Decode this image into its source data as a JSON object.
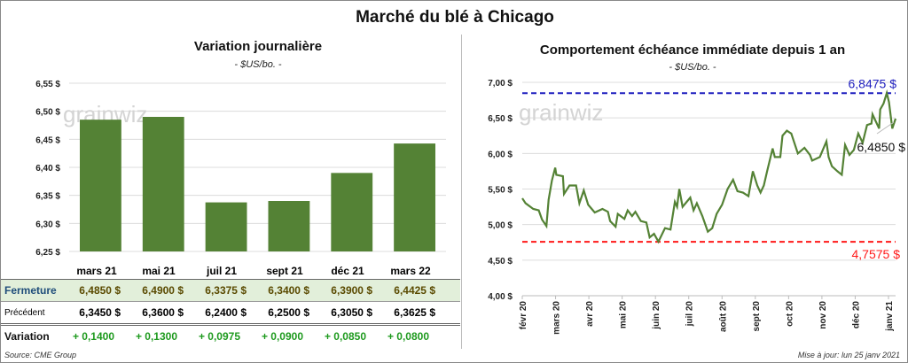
{
  "title": "Marché du blé à Chicago",
  "left": {
    "title": "Variation journalière",
    "subtitle": "- $US/bo. -",
    "table": {
      "columns": [
        "mars 21",
        "mai 21",
        "juil 21",
        "sept 21",
        "déc 21",
        "mars 22"
      ],
      "rows": [
        {
          "label": "Fermeture",
          "values": [
            "6,4850  $",
            "6,4900  $",
            "6,3375  $",
            "6,3400  $",
            "6,3900  $",
            "6,4425  $"
          ]
        },
        {
          "label": "Précédent",
          "values": [
            "6,3450  $",
            "6,3600  $",
            "6,2400  $",
            "6,2500  $",
            "6,3050  $",
            "6,3625  $"
          ]
        },
        {
          "label": "Variation",
          "values": [
            "+ 0,1400",
            "+ 0,1300",
            "+ 0,0975",
            "+ 0,0900",
            "+ 0,0850",
            "+ 0,0800"
          ]
        }
      ]
    },
    "source": "Source: CME Group"
  },
  "right": {
    "title": "Comportement  échéance immédiate depuis 1 an",
    "subtitle": "- $US/bo. -",
    "update": "Mise à jour: lun 25 janv 2021"
  },
  "watermark": "grainwiz",
  "colors": {
    "bar": "#548235",
    "line": "#548235",
    "max": "#1f1fbf",
    "min": "#ff1a1a",
    "fermeture_bg": "#e2efda",
    "variation": "#1e9a1e"
  },
  "chart_data": [
    {
      "type": "bar",
      "categories": [
        "mars 21",
        "mai 21",
        "juil 21",
        "sept 21",
        "déc 21",
        "mars 22"
      ],
      "values": [
        6.485,
        6.49,
        6.3375,
        6.34,
        6.39,
        6.4425
      ],
      "ylim": [
        6.25,
        6.55
      ],
      "yticks": [
        "6,25 $",
        "6,30 $",
        "6,35 $",
        "6,40 $",
        "6,45 $",
        "6,50 $",
        "6,55 $"
      ],
      "grid": true
    },
    {
      "type": "line",
      "ylim": [
        4.0,
        7.0
      ],
      "yticks": [
        "4,00 $",
        "4,50 $",
        "5,00 $",
        "5,50 $",
        "6,00 $",
        "6,50 $",
        "7,00 $"
      ],
      "xticks": [
        "févr 20",
        "mars 20",
        "avr 20",
        "mai 20",
        "juin 20",
        "juil 20",
        "août 20",
        "sept 20",
        "oct 20",
        "nov 20",
        "déc 20",
        "janv 21"
      ],
      "grid": true,
      "max_line": {
        "value": 6.8475,
        "label": "6,8475 $"
      },
      "min_line": {
        "value": 4.7575,
        "label": "4,7575 $"
      },
      "last_label": "6,4850 $",
      "points": [
        [
          "2020-02-01",
          5.37
        ],
        [
          "2020-02-04",
          5.3
        ],
        [
          "2020-02-11",
          5.22
        ],
        [
          "2020-02-16",
          5.2
        ],
        [
          "2020-02-19",
          5.07
        ],
        [
          "2020-02-23",
          4.98
        ],
        [
          "2020-02-25",
          5.35
        ],
        [
          "2020-02-28",
          5.62
        ],
        [
          "2020-03-02",
          5.8
        ],
        [
          "2020-03-03",
          5.7
        ],
        [
          "2020-03-09",
          5.68
        ],
        [
          "2020-03-10",
          5.43
        ],
        [
          "2020-03-15",
          5.55
        ],
        [
          "2020-03-21",
          5.55
        ],
        [
          "2020-03-24",
          5.3
        ],
        [
          "2020-03-28",
          5.48
        ],
        [
          "2020-04-01",
          5.28
        ],
        [
          "2020-04-07",
          5.17
        ],
        [
          "2020-04-14",
          5.22
        ],
        [
          "2020-04-19",
          5.18
        ],
        [
          "2020-04-21",
          5.05
        ],
        [
          "2020-04-26",
          4.97
        ],
        [
          "2020-04-28",
          5.15
        ],
        [
          "2020-05-04",
          5.08
        ],
        [
          "2020-05-07",
          5.2
        ],
        [
          "2020-05-11",
          5.12
        ],
        [
          "2020-05-14",
          5.18
        ],
        [
          "2020-05-19",
          5.05
        ],
        [
          "2020-05-24",
          5.03
        ],
        [
          "2020-05-27",
          4.82
        ],
        [
          "2020-05-31",
          4.87
        ],
        [
          "2020-06-04",
          4.76
        ],
        [
          "2020-06-10",
          4.95
        ],
        [
          "2020-06-15",
          4.93
        ],
        [
          "2020-06-19",
          5.32
        ],
        [
          "2020-06-21",
          5.25
        ],
        [
          "2020-06-23",
          5.5
        ],
        [
          "2020-06-26",
          5.25
        ],
        [
          "2020-07-03",
          5.38
        ],
        [
          "2020-07-06",
          5.2
        ],
        [
          "2020-07-09",
          5.3
        ],
        [
          "2020-07-14",
          5.12
        ],
        [
          "2020-07-19",
          4.9
        ],
        [
          "2020-07-23",
          4.95
        ],
        [
          "2020-07-27",
          5.15
        ],
        [
          "2020-08-01",
          5.28
        ],
        [
          "2020-08-06",
          5.5
        ],
        [
          "2020-08-11",
          5.63
        ],
        [
          "2020-08-15",
          5.47
        ],
        [
          "2020-08-20",
          5.45
        ],
        [
          "2020-08-25",
          5.4
        ],
        [
          "2020-08-29",
          5.75
        ],
        [
          "2020-09-02",
          5.55
        ],
        [
          "2020-09-05",
          5.45
        ],
        [
          "2020-09-08",
          5.55
        ],
        [
          "2020-09-11",
          5.75
        ],
        [
          "2020-09-16",
          6.07
        ],
        [
          "2020-09-18",
          5.95
        ],
        [
          "2020-09-23",
          5.95
        ],
        [
          "2020-09-25",
          6.25
        ],
        [
          "2020-09-29",
          6.32
        ],
        [
          "2020-10-03",
          6.28
        ],
        [
          "2020-10-09",
          6.0
        ],
        [
          "2020-10-15",
          6.08
        ],
        [
          "2020-10-20",
          5.98
        ],
        [
          "2020-10-22",
          5.9
        ],
        [
          "2020-10-29",
          5.95
        ],
        [
          "2020-11-04",
          6.17
        ],
        [
          "2020-11-06",
          5.95
        ],
        [
          "2020-11-09",
          5.82
        ],
        [
          "2020-11-14",
          5.75
        ],
        [
          "2020-11-18",
          5.7
        ],
        [
          "2020-11-21",
          6.12
        ],
        [
          "2020-11-25",
          5.98
        ],
        [
          "2020-11-29",
          6.05
        ],
        [
          "2020-12-03",
          6.28
        ],
        [
          "2020-12-07",
          6.15
        ],
        [
          "2020-12-11",
          6.4
        ],
        [
          "2020-12-15",
          6.42
        ],
        [
          "2020-12-16",
          6.55
        ],
        [
          "2020-12-22",
          6.35
        ],
        [
          "2020-12-23",
          6.62
        ],
        [
          "2020-12-26",
          6.7
        ],
        [
          "2020-12-29",
          6.85
        ],
        [
          "2020-12-31",
          6.72
        ],
        [
          "2021-01-03",
          6.35
        ],
        [
          "2021-01-06",
          6.49
        ]
      ]
    }
  ]
}
